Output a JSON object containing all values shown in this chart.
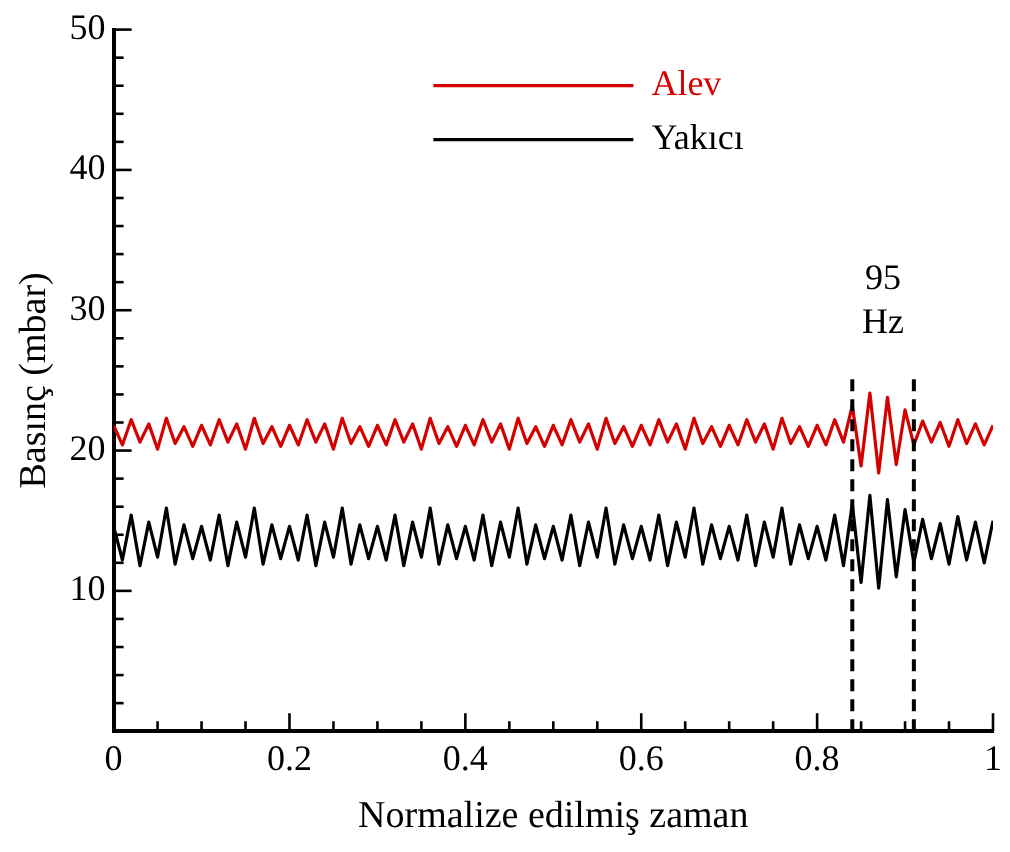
{
  "chart_data": {
    "type": "line",
    "xlabel": "Normalize edilmiş zaman",
    "ylabel": "Basınç (mbar)",
    "x": [
      0,
      0.01,
      0.02,
      0.03,
      0.04,
      0.05,
      0.06,
      0.07,
      0.08,
      0.09,
      0.1,
      0.11,
      0.12,
      0.13,
      0.14,
      0.15,
      0.16,
      0.17,
      0.18,
      0.19,
      0.2,
      0.21,
      0.22,
      0.23,
      0.24,
      0.25,
      0.26,
      0.27,
      0.28,
      0.29,
      0.3,
      0.31,
      0.32,
      0.33,
      0.34,
      0.35,
      0.36,
      0.37,
      0.38,
      0.39,
      0.4,
      0.41,
      0.42,
      0.43,
      0.44,
      0.45,
      0.46,
      0.47,
      0.48,
      0.49,
      0.5,
      0.51,
      0.52,
      0.53,
      0.54,
      0.55,
      0.56,
      0.57,
      0.58,
      0.59,
      0.6,
      0.61,
      0.62,
      0.63,
      0.64,
      0.65,
      0.66,
      0.67,
      0.68,
      0.69,
      0.7,
      0.71,
      0.72,
      0.73,
      0.74,
      0.75,
      0.76,
      0.77,
      0.78,
      0.79,
      0.8,
      0.81,
      0.82,
      0.83,
      0.84,
      0.85,
      0.86,
      0.87,
      0.88,
      0.89,
      0.9,
      0.91,
      0.92,
      0.93,
      0.94,
      0.95,
      0.96,
      0.97,
      0.98,
      0.99,
      1
    ],
    "series": [
      {
        "name": "Alev",
        "color": "#d40000",
        "values": [
          21.8,
          20.4,
          22.2,
          20.6,
          21.9,
          20.1,
          22.3,
          20.5,
          21.7,
          20.3,
          21.8,
          20.4,
          22.2,
          20.6,
          21.9,
          20.1,
          22.3,
          20.5,
          21.7,
          20.3,
          21.8,
          20.4,
          22.2,
          20.6,
          21.9,
          20.1,
          22.3,
          20.5,
          21.7,
          20.3,
          21.8,
          20.4,
          22.2,
          20.6,
          21.9,
          20.1,
          22.3,
          20.5,
          21.7,
          20.3,
          21.8,
          20.4,
          22.2,
          20.6,
          21.9,
          20.1,
          22.3,
          20.5,
          21.7,
          20.3,
          21.8,
          20.4,
          22.2,
          20.6,
          21.9,
          20.1,
          22.3,
          20.5,
          21.7,
          20.3,
          21.8,
          20.4,
          22.2,
          20.6,
          21.9,
          20.1,
          22.3,
          20.5,
          21.7,
          20.3,
          21.8,
          20.4,
          22.2,
          20.6,
          21.9,
          20.1,
          22.3,
          20.5,
          21.7,
          20.3,
          21.8,
          20.4,
          22.2,
          20.6,
          23.2,
          18.9,
          24.1,
          18.4,
          23.8,
          19.0,
          22.9,
          20.4,
          22.1,
          20.6,
          22.0,
          20.3,
          22.2,
          20.5,
          21.9,
          20.4,
          21.8
        ]
      },
      {
        "name": "Yakıcı",
        "color": "#000000",
        "values": [
          14.6,
          12.2,
          15.4,
          11.8,
          14.9,
          12.4,
          15.9,
          11.9,
          14.7,
          12.3,
          14.6,
          12.2,
          15.4,
          11.8,
          14.9,
          12.4,
          15.9,
          11.9,
          14.7,
          12.3,
          14.6,
          12.2,
          15.4,
          11.8,
          14.9,
          12.4,
          15.9,
          11.9,
          14.7,
          12.3,
          14.6,
          12.2,
          15.4,
          11.8,
          14.9,
          12.4,
          15.9,
          11.9,
          14.7,
          12.3,
          14.6,
          12.2,
          15.4,
          11.8,
          14.9,
          12.4,
          15.9,
          11.9,
          14.7,
          12.3,
          14.6,
          12.2,
          15.4,
          11.8,
          14.9,
          12.4,
          15.9,
          11.9,
          14.7,
          12.3,
          14.6,
          12.2,
          15.4,
          11.8,
          14.9,
          12.4,
          15.9,
          11.9,
          14.7,
          12.3,
          14.6,
          12.2,
          15.4,
          11.8,
          14.9,
          12.4,
          15.9,
          11.9,
          14.7,
          12.3,
          14.6,
          12.2,
          15.4,
          11.8,
          16.2,
          10.6,
          16.8,
          10.2,
          16.5,
          11.0,
          15.8,
          12.0,
          15.1,
          12.3,
          14.8,
          11.9,
          15.3,
          12.2,
          14.9,
          12.0,
          15.0
        ]
      }
    ],
    "xlim": [
      0,
      1
    ],
    "xticks": [
      0,
      0.2,
      0.4,
      0.6,
      0.8,
      1
    ],
    "ylim": [
      0,
      50
    ],
    "yticks": [
      {
        "value": 0,
        "label": null
      },
      10,
      20,
      30,
      40,
      50
    ],
    "ref_lines": [
      {
        "axis": "x",
        "value": 0.84,
        "line_style": "dashed",
        "color": "#000000"
      },
      {
        "axis": "x",
        "value": 0.91,
        "line_style": "dashed",
        "color": "#000000"
      }
    ],
    "annotations": [
      "95 Hz"
    ],
    "legend": "top",
    "grid": false,
    "marker": "none",
    "line_style": "solid"
  }
}
